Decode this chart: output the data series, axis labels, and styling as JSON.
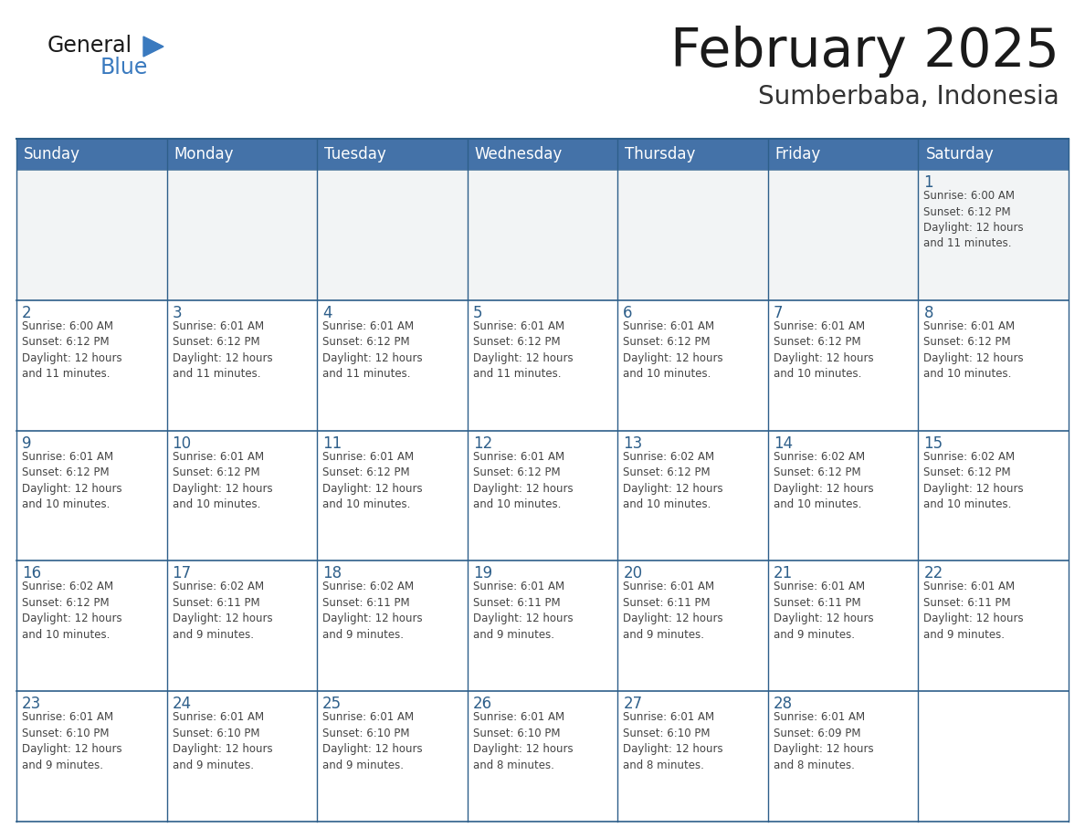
{
  "title": "February 2025",
  "subtitle": "Sumberbaba, Indonesia",
  "days_of_week": [
    "Sunday",
    "Monday",
    "Tuesday",
    "Wednesday",
    "Thursday",
    "Friday",
    "Saturday"
  ],
  "header_bg": "#4472a8",
  "header_text": "#ffffff",
  "cell_bg_white": "#ffffff",
  "cell_bg_gray": "#f2f4f5",
  "border_color_dark": "#2e5f8a",
  "border_color_header": "#4472a8",
  "text_color": "#444444",
  "day_num_color": "#2e5f8a",
  "title_color": "#1a1a1a",
  "subtitle_color": "#333333",
  "logo_general_color": "#1a1a1a",
  "logo_blue_color": "#3a7abf",
  "weeks": [
    [
      {
        "day": null,
        "info": null
      },
      {
        "day": null,
        "info": null
      },
      {
        "day": null,
        "info": null
      },
      {
        "day": null,
        "info": null
      },
      {
        "day": null,
        "info": null
      },
      {
        "day": null,
        "info": null
      },
      {
        "day": 1,
        "info": "Sunrise: 6:00 AM\nSunset: 6:12 PM\nDaylight: 12 hours\nand 11 minutes."
      }
    ],
    [
      {
        "day": 2,
        "info": "Sunrise: 6:00 AM\nSunset: 6:12 PM\nDaylight: 12 hours\nand 11 minutes."
      },
      {
        "day": 3,
        "info": "Sunrise: 6:01 AM\nSunset: 6:12 PM\nDaylight: 12 hours\nand 11 minutes."
      },
      {
        "day": 4,
        "info": "Sunrise: 6:01 AM\nSunset: 6:12 PM\nDaylight: 12 hours\nand 11 minutes."
      },
      {
        "day": 5,
        "info": "Sunrise: 6:01 AM\nSunset: 6:12 PM\nDaylight: 12 hours\nand 11 minutes."
      },
      {
        "day": 6,
        "info": "Sunrise: 6:01 AM\nSunset: 6:12 PM\nDaylight: 12 hours\nand 10 minutes."
      },
      {
        "day": 7,
        "info": "Sunrise: 6:01 AM\nSunset: 6:12 PM\nDaylight: 12 hours\nand 10 minutes."
      },
      {
        "day": 8,
        "info": "Sunrise: 6:01 AM\nSunset: 6:12 PM\nDaylight: 12 hours\nand 10 minutes."
      }
    ],
    [
      {
        "day": 9,
        "info": "Sunrise: 6:01 AM\nSunset: 6:12 PM\nDaylight: 12 hours\nand 10 minutes."
      },
      {
        "day": 10,
        "info": "Sunrise: 6:01 AM\nSunset: 6:12 PM\nDaylight: 12 hours\nand 10 minutes."
      },
      {
        "day": 11,
        "info": "Sunrise: 6:01 AM\nSunset: 6:12 PM\nDaylight: 12 hours\nand 10 minutes."
      },
      {
        "day": 12,
        "info": "Sunrise: 6:01 AM\nSunset: 6:12 PM\nDaylight: 12 hours\nand 10 minutes."
      },
      {
        "day": 13,
        "info": "Sunrise: 6:02 AM\nSunset: 6:12 PM\nDaylight: 12 hours\nand 10 minutes."
      },
      {
        "day": 14,
        "info": "Sunrise: 6:02 AM\nSunset: 6:12 PM\nDaylight: 12 hours\nand 10 minutes."
      },
      {
        "day": 15,
        "info": "Sunrise: 6:02 AM\nSunset: 6:12 PM\nDaylight: 12 hours\nand 10 minutes."
      }
    ],
    [
      {
        "day": 16,
        "info": "Sunrise: 6:02 AM\nSunset: 6:12 PM\nDaylight: 12 hours\nand 10 minutes."
      },
      {
        "day": 17,
        "info": "Sunrise: 6:02 AM\nSunset: 6:11 PM\nDaylight: 12 hours\nand 9 minutes."
      },
      {
        "day": 18,
        "info": "Sunrise: 6:02 AM\nSunset: 6:11 PM\nDaylight: 12 hours\nand 9 minutes."
      },
      {
        "day": 19,
        "info": "Sunrise: 6:01 AM\nSunset: 6:11 PM\nDaylight: 12 hours\nand 9 minutes."
      },
      {
        "day": 20,
        "info": "Sunrise: 6:01 AM\nSunset: 6:11 PM\nDaylight: 12 hours\nand 9 minutes."
      },
      {
        "day": 21,
        "info": "Sunrise: 6:01 AM\nSunset: 6:11 PM\nDaylight: 12 hours\nand 9 minutes."
      },
      {
        "day": 22,
        "info": "Sunrise: 6:01 AM\nSunset: 6:11 PM\nDaylight: 12 hours\nand 9 minutes."
      }
    ],
    [
      {
        "day": 23,
        "info": "Sunrise: 6:01 AM\nSunset: 6:10 PM\nDaylight: 12 hours\nand 9 minutes."
      },
      {
        "day": 24,
        "info": "Sunrise: 6:01 AM\nSunset: 6:10 PM\nDaylight: 12 hours\nand 9 minutes."
      },
      {
        "day": 25,
        "info": "Sunrise: 6:01 AM\nSunset: 6:10 PM\nDaylight: 12 hours\nand 9 minutes."
      },
      {
        "day": 26,
        "info": "Sunrise: 6:01 AM\nSunset: 6:10 PM\nDaylight: 12 hours\nand 8 minutes."
      },
      {
        "day": 27,
        "info": "Sunrise: 6:01 AM\nSunset: 6:10 PM\nDaylight: 12 hours\nand 8 minutes."
      },
      {
        "day": 28,
        "info": "Sunrise: 6:01 AM\nSunset: 6:09 PM\nDaylight: 12 hours\nand 8 minutes."
      },
      {
        "day": null,
        "info": null
      }
    ]
  ]
}
